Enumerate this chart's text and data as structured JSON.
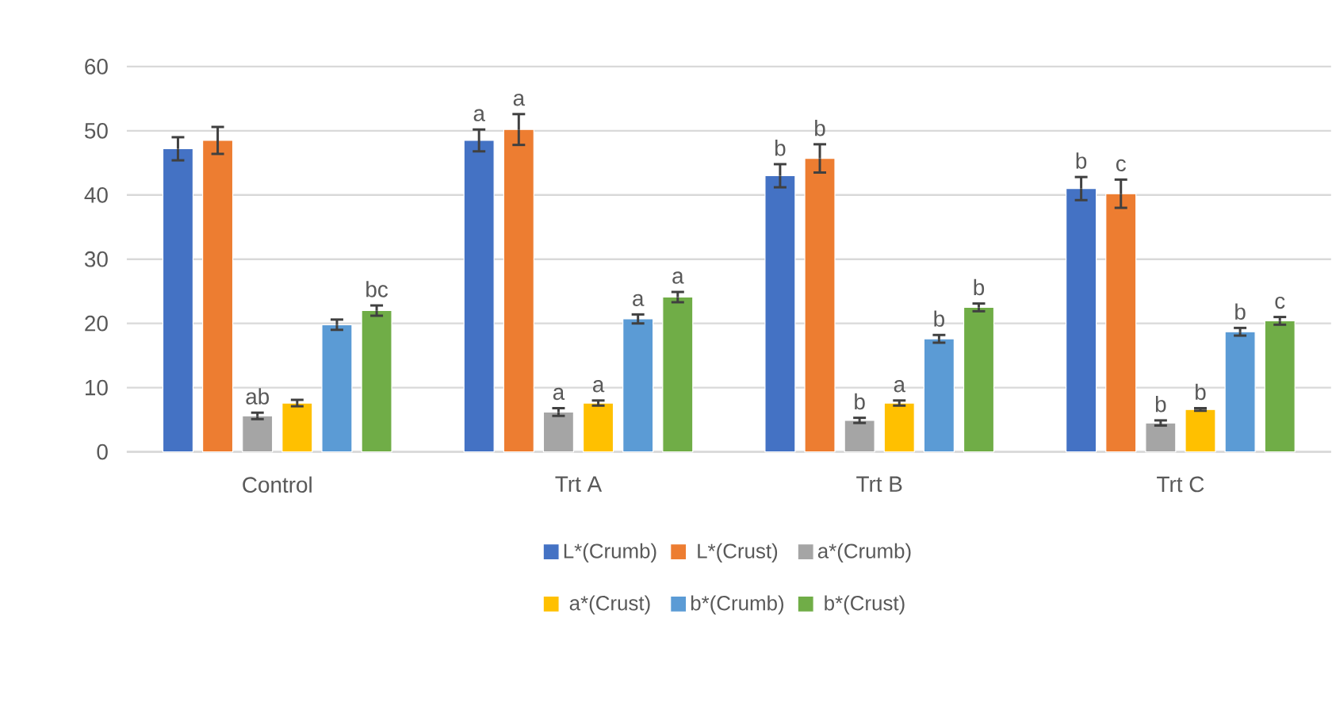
{
  "chart_data": {
    "type": "bar",
    "categories": [
      "Control",
      "Trt A",
      "Trt B",
      "Trt C"
    ],
    "series": [
      {
        "name": "L*(Crumb)",
        "color": "#4472c4",
        "values": [
          47.2,
          48.5,
          43.0,
          41.0
        ],
        "errors": [
          1.8,
          1.7,
          1.8,
          1.8
        ],
        "value_labels": [
          null,
          "a",
          "b",
          "b"
        ]
      },
      {
        "name": "L*(Crust)",
        "color": "#ed7d31",
        "values": [
          48.5,
          50.2,
          45.7,
          40.2
        ],
        "errors": [
          2.1,
          2.4,
          2.2,
          2.2
        ],
        "value_labels": [
          null,
          "a",
          "b",
          "c"
        ]
      },
      {
        "name": "a*(Crumb)",
        "color": "#a5a5a5",
        "values": [
          5.6,
          6.2,
          4.9,
          4.5
        ],
        "errors": [
          0.5,
          0.6,
          0.4,
          0.4
        ],
        "value_labels": [
          "ab",
          "a",
          "b",
          "b"
        ]
      },
      {
        "name": "a*(Crust)",
        "color": "#ffc000",
        "values": [
          7.6,
          7.6,
          7.6,
          6.6
        ],
        "errors": [
          0.5,
          0.4,
          0.4,
          0.2
        ],
        "value_labels": [
          null,
          "a",
          "a",
          "b"
        ]
      },
      {
        "name": "b*(Crumb)",
        "color": "#5b9bd5",
        "values": [
          19.8,
          20.7,
          17.6,
          18.7
        ],
        "errors": [
          0.8,
          0.7,
          0.6,
          0.6
        ],
        "value_labels": [
          null,
          "a",
          "b",
          "b"
        ]
      },
      {
        "name": "b*(Crust)",
        "color": "#70ad47",
        "values": [
          22.0,
          24.1,
          22.5,
          20.4
        ],
        "errors": [
          0.8,
          0.8,
          0.6,
          0.6
        ],
        "value_labels": [
          "bc",
          "a",
          "b",
          "c"
        ]
      }
    ],
    "ylim": [
      0,
      60
    ],
    "yticks": [
      0,
      10,
      20,
      30,
      40,
      50,
      60
    ],
    "grid": "y",
    "legend": "bottom"
  }
}
